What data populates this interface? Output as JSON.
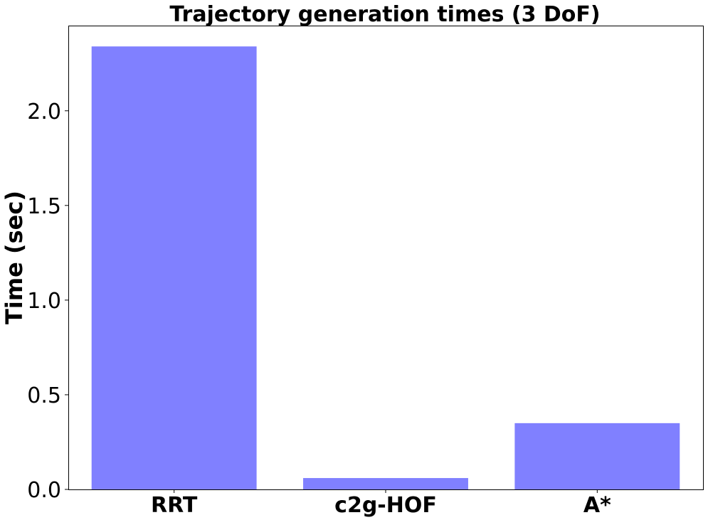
{
  "chart_data": {
    "type": "bar",
    "title": "Trajectory generation times (3 DoF)",
    "xlabel": "",
    "ylabel": "Time (sec)",
    "categories": [
      "RRT",
      "c2g-HOF",
      "A*"
    ],
    "values": [
      2.34,
      0.06,
      0.35
    ],
    "ylim": [
      0,
      2.45
    ],
    "yticks": [
      0.0,
      0.5,
      1.0,
      1.5,
      2.0
    ],
    "ytick_labels": [
      "0.0",
      "0.5",
      "1.0",
      "1.5",
      "2.0"
    ],
    "bar_color": "#8080ff",
    "grid": false,
    "legend": "none"
  }
}
